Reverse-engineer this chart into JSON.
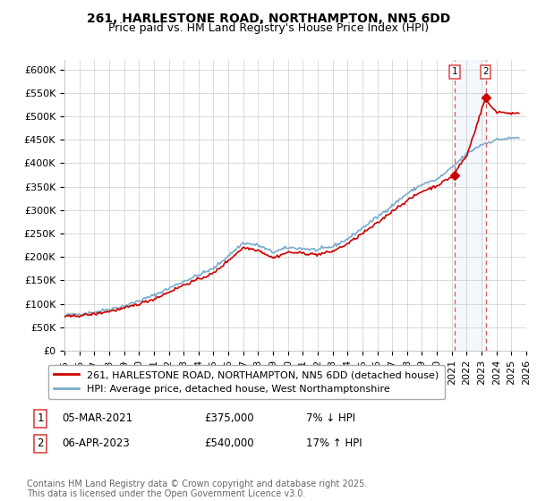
{
  "title1": "261, HARLESTONE ROAD, NORTHAMPTON, NN5 6DD",
  "title2": "Price paid vs. HM Land Registry's House Price Index (HPI)",
  "ylabel_ticks": [
    "£0",
    "£50K",
    "£100K",
    "£150K",
    "£200K",
    "£250K",
    "£300K",
    "£350K",
    "£400K",
    "£450K",
    "£500K",
    "£550K",
    "£600K"
  ],
  "ytick_vals": [
    0,
    50000,
    100000,
    150000,
    200000,
    250000,
    300000,
    350000,
    400000,
    450000,
    500000,
    550000,
    600000
  ],
  "ylim": [
    0,
    620000
  ],
  "xlim_years": [
    1995,
    2026
  ],
  "xtick_years": [
    1995,
    1996,
    1997,
    1998,
    1999,
    2000,
    2001,
    2002,
    2003,
    2004,
    2005,
    2006,
    2007,
    2008,
    2009,
    2010,
    2011,
    2012,
    2013,
    2014,
    2015,
    2016,
    2017,
    2018,
    2019,
    2020,
    2021,
    2022,
    2023,
    2024,
    2025,
    2026
  ],
  "color_red": "#cc0000",
  "color_blue": "#7aaccc",
  "color_dashed_red": "#dd5555",
  "grid_color": "#cccccc",
  "background_color": "#ffffff",
  "legend_label_red": "261, HARLESTONE ROAD, NORTHAMPTON, NN5 6DD (detached house)",
  "legend_label_blue": "HPI: Average price, detached house, West Northamptonshire",
  "sale1_label": "1",
  "sale1_date": "05-MAR-2021",
  "sale1_price": "£375,000",
  "sale1_note": "7% ↓ HPI",
  "sale1_year": 2021.18,
  "sale1_value": 375000,
  "sale2_label": "2",
  "sale2_date": "06-APR-2023",
  "sale2_price": "£540,000",
  "sale2_note": "17% ↑ HPI",
  "sale2_year": 2023.27,
  "sale2_value": 540000,
  "footnote": "Contains HM Land Registry data © Crown copyright and database right 2025.\nThis data is licensed under the Open Government Licence v3.0.",
  "title_fontsize": 10,
  "subtitle_fontsize": 9,
  "tick_fontsize": 8,
  "legend_fontsize": 8,
  "footnote_fontsize": 7
}
